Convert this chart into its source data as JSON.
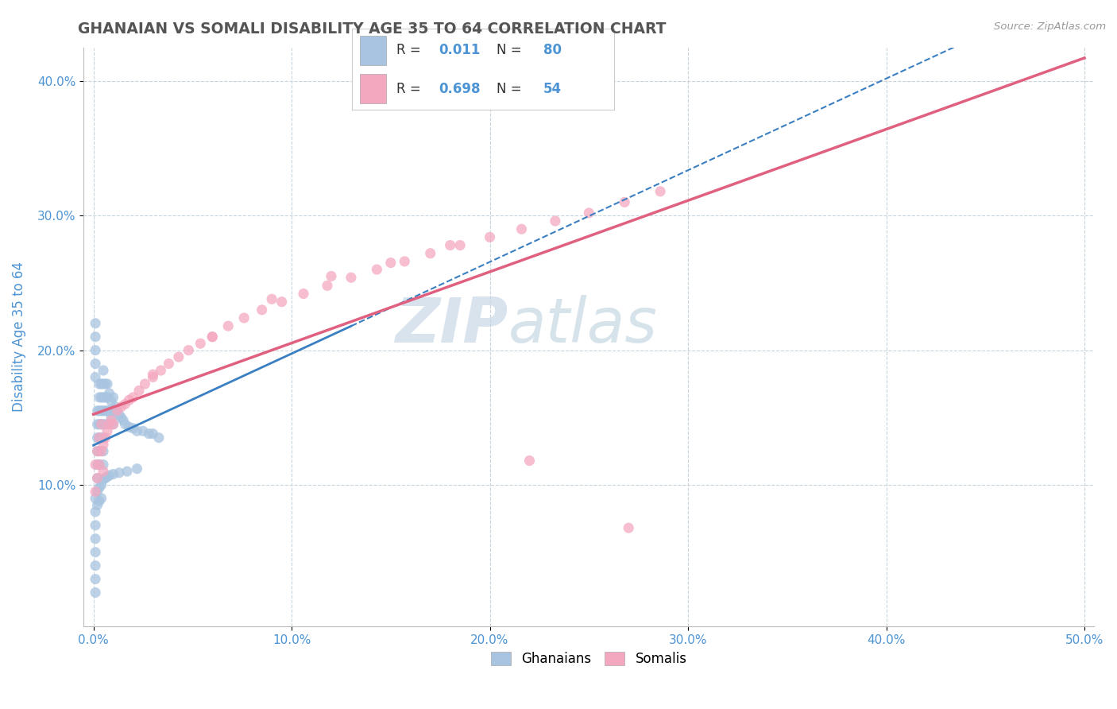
{
  "title": "GHANAIAN VS SOMALI DISABILITY AGE 35 TO 64 CORRELATION CHART",
  "source_text": "Source: ZipAtlas.com",
  "ylabel": "Disability Age 35 to 64",
  "xlim": [
    -0.005,
    0.505
  ],
  "ylim": [
    -0.005,
    0.425
  ],
  "xtick_vals": [
    0.0,
    0.1,
    0.2,
    0.3,
    0.4,
    0.5
  ],
  "ytick_vals": [
    0.1,
    0.2,
    0.3,
    0.4
  ],
  "ghanaian_color": "#a8c4e0",
  "somali_color": "#f4a8c0",
  "ghanaian_R": 0.011,
  "ghanaian_N": 80,
  "somali_R": 0.698,
  "somali_N": 54,
  "ghanaian_line_color": "#3a7fc1",
  "somali_line_color": "#e06080",
  "watermark_zip_color": "#c8d8e8",
  "watermark_atlas_color": "#b0c8d8",
  "background_color": "#ffffff",
  "grid_color": "#c8d4dc",
  "title_color": "#555555",
  "axis_label_color": "#4d94d4",
  "ghanaian_scatter_x": [
    0.002,
    0.002,
    0.002,
    0.002,
    0.002,
    0.002,
    0.003,
    0.003,
    0.003,
    0.003,
    0.003,
    0.003,
    0.003,
    0.004,
    0.004,
    0.004,
    0.004,
    0.004,
    0.005,
    0.005,
    0.005,
    0.005,
    0.005,
    0.005,
    0.005,
    0.005,
    0.006,
    0.006,
    0.006,
    0.006,
    0.007,
    0.007,
    0.007,
    0.008,
    0.008,
    0.009,
    0.009,
    0.01,
    0.01,
    0.01,
    0.011,
    0.012,
    0.013,
    0.014,
    0.015,
    0.016,
    0.018,
    0.02,
    0.022,
    0.025,
    0.028,
    0.03,
    0.033,
    0.001,
    0.001,
    0.001,
    0.001,
    0.001,
    0.001,
    0.001,
    0.001,
    0.001,
    0.001,
    0.001,
    0.001,
    0.001,
    0.002,
    0.002,
    0.003,
    0.003,
    0.004,
    0.004,
    0.005,
    0.006,
    0.007,
    0.008,
    0.01,
    0.013,
    0.017,
    0.022
  ],
  "ghanaian_scatter_y": [
    0.155,
    0.145,
    0.135,
    0.125,
    0.115,
    0.105,
    0.175,
    0.165,
    0.155,
    0.145,
    0.135,
    0.125,
    0.115,
    0.175,
    0.165,
    0.155,
    0.145,
    0.135,
    0.185,
    0.175,
    0.165,
    0.155,
    0.145,
    0.135,
    0.125,
    0.115,
    0.175,
    0.165,
    0.155,
    0.145,
    0.175,
    0.165,
    0.155,
    0.168,
    0.155,
    0.162,
    0.15,
    0.165,
    0.155,
    0.145,
    0.158,
    0.155,
    0.152,
    0.15,
    0.148,
    0.145,
    0.143,
    0.142,
    0.14,
    0.14,
    0.138,
    0.138,
    0.135,
    0.22,
    0.21,
    0.2,
    0.19,
    0.18,
    0.09,
    0.08,
    0.07,
    0.06,
    0.05,
    0.04,
    0.03,
    0.02,
    0.095,
    0.085,
    0.098,
    0.088,
    0.1,
    0.09,
    0.104,
    0.105,
    0.106,
    0.107,
    0.108,
    0.109,
    0.11,
    0.112
  ],
  "somali_scatter_x": [
    0.001,
    0.001,
    0.002,
    0.002,
    0.003,
    0.003,
    0.004,
    0.004,
    0.005,
    0.005,
    0.006,
    0.007,
    0.008,
    0.009,
    0.01,
    0.012,
    0.014,
    0.016,
    0.018,
    0.02,
    0.023,
    0.026,
    0.03,
    0.034,
    0.038,
    0.043,
    0.048,
    0.054,
    0.06,
    0.068,
    0.076,
    0.085,
    0.095,
    0.106,
    0.118,
    0.13,
    0.143,
    0.157,
    0.17,
    0.185,
    0.2,
    0.216,
    0.233,
    0.25,
    0.268,
    0.286,
    0.03,
    0.06,
    0.09,
    0.12,
    0.15,
    0.18,
    0.22,
    0.27
  ],
  "somali_scatter_y": [
    0.095,
    0.115,
    0.105,
    0.125,
    0.115,
    0.135,
    0.125,
    0.145,
    0.11,
    0.13,
    0.135,
    0.14,
    0.145,
    0.148,
    0.145,
    0.155,
    0.158,
    0.16,
    0.163,
    0.165,
    0.17,
    0.175,
    0.18,
    0.185,
    0.19,
    0.195,
    0.2,
    0.205,
    0.21,
    0.218,
    0.224,
    0.23,
    0.236,
    0.242,
    0.248,
    0.254,
    0.26,
    0.266,
    0.272,
    0.278,
    0.284,
    0.29,
    0.296,
    0.302,
    0.31,
    0.318,
    0.182,
    0.21,
    0.238,
    0.255,
    0.265,
    0.278,
    0.118,
    0.068
  ]
}
